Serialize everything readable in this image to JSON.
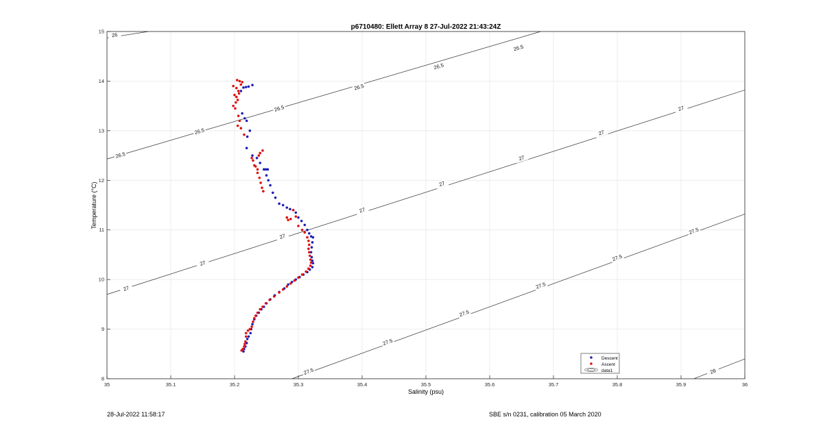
{
  "chart_data": {
    "type": "scatter",
    "title": "p6710480: Ellett Array 8 27-Jul-2022 21:43:24Z",
    "xlabel": "Salinity (psu)",
    "ylabel": "Temperature (°C)",
    "xlim": [
      35,
      36
    ],
    "ylim": [
      8,
      15
    ],
    "xticks": [
      "35",
      "35.1",
      "35.2",
      "35.3",
      "35.4",
      "35.5",
      "35.6",
      "35.7",
      "35.8",
      "35.9",
      "36"
    ],
    "yticks": [
      "8",
      "9",
      "10",
      "11",
      "12",
      "13",
      "14",
      "15"
    ],
    "grid": true,
    "legend": {
      "position": "bottom-right",
      "entries": [
        "Descent",
        "Ascent",
        "data1"
      ]
    },
    "series": [
      {
        "name": "Descent",
        "color": "#1f1fb4",
        "points": [
          [
            35.228,
            13.92
          ],
          [
            35.222,
            13.89
          ],
          [
            35.218,
            13.88
          ],
          [
            35.214,
            13.87
          ],
          [
            35.21,
            13.8
          ],
          [
            35.212,
            13.35
          ],
          [
            35.216,
            13.25
          ],
          [
            35.219,
            13.2
          ],
          [
            35.224,
            13.0
          ],
          [
            35.22,
            12.88
          ],
          [
            35.219,
            12.65
          ],
          [
            35.228,
            12.5
          ],
          [
            35.235,
            12.45
          ],
          [
            35.24,
            12.35
          ],
          [
            35.246,
            12.22
          ],
          [
            35.249,
            12.22
          ],
          [
            35.252,
            12.22
          ],
          [
            35.25,
            12.1
          ],
          [
            35.253,
            12.0
          ],
          [
            35.256,
            11.9
          ],
          [
            35.26,
            11.75
          ],
          [
            35.264,
            11.65
          ],
          [
            35.27,
            11.53
          ],
          [
            35.276,
            11.5
          ],
          [
            35.282,
            11.45
          ],
          [
            35.287,
            11.42
          ],
          [
            35.292,
            11.4
          ],
          [
            35.296,
            11.35
          ],
          [
            35.3,
            11.25
          ],
          [
            35.305,
            11.18
          ],
          [
            35.31,
            11.1
          ],
          [
            35.314,
            11.0
          ],
          [
            35.317,
            10.93
          ],
          [
            35.32,
            10.87
          ],
          [
            35.323,
            10.85
          ],
          [
            35.322,
            10.75
          ],
          [
            35.321,
            10.65
          ],
          [
            35.32,
            10.55
          ],
          [
            35.321,
            10.45
          ],
          [
            35.322,
            10.38
          ],
          [
            35.323,
            10.33
          ],
          [
            35.322,
            10.25
          ],
          [
            35.318,
            10.2
          ],
          [
            35.314,
            10.15
          ],
          [
            35.308,
            10.1
          ],
          [
            35.302,
            10.05
          ],
          [
            35.296,
            10.0
          ],
          [
            35.29,
            9.95
          ],
          [
            35.284,
            9.9
          ],
          [
            35.278,
            9.82
          ],
          [
            35.27,
            9.75
          ],
          [
            35.263,
            9.68
          ],
          [
            35.256,
            9.6
          ],
          [
            35.25,
            9.52
          ],
          [
            35.246,
            9.45
          ],
          [
            35.242,
            9.4
          ],
          [
            35.238,
            9.33
          ],
          [
            35.234,
            9.27
          ],
          [
            35.231,
            9.2
          ],
          [
            35.228,
            9.1
          ],
          [
            35.226,
            9.0
          ],
          [
            35.225,
            8.92
          ],
          [
            35.222,
            8.85
          ],
          [
            35.22,
            8.8
          ],
          [
            35.219,
            8.72
          ],
          [
            35.217,
            8.65
          ],
          [
            35.215,
            8.6
          ],
          [
            35.214,
            8.55
          ]
        ]
      },
      {
        "name": "Ascent",
        "color": "#e01010",
        "points": [
          [
            35.204,
            14.02
          ],
          [
            35.208,
            14.0
          ],
          [
            35.212,
            13.98
          ],
          [
            35.21,
            13.93
          ],
          [
            35.198,
            13.9
          ],
          [
            35.203,
            13.86
          ],
          [
            35.206,
            13.8
          ],
          [
            35.207,
            13.75
          ],
          [
            35.2,
            13.72
          ],
          [
            35.203,
            13.68
          ],
          [
            35.205,
            13.62
          ],
          [
            35.202,
            13.57
          ],
          [
            35.198,
            13.5
          ],
          [
            35.201,
            13.45
          ],
          [
            35.206,
            13.3
          ],
          [
            35.208,
            13.2
          ],
          [
            35.205,
            13.1
          ],
          [
            35.21,
            13.05
          ],
          [
            35.215,
            12.92
          ],
          [
            35.227,
            12.45
          ],
          [
            35.229,
            12.4
          ],
          [
            35.231,
            12.3
          ],
          [
            35.233,
            12.28
          ],
          [
            35.244,
            12.6
          ],
          [
            35.24,
            12.55
          ],
          [
            35.238,
            12.5
          ],
          [
            35.236,
            12.22
          ],
          [
            35.236,
            12.15
          ],
          [
            35.239,
            12.05
          ],
          [
            35.241,
            11.95
          ],
          [
            35.243,
            11.85
          ],
          [
            35.245,
            11.78
          ],
          [
            35.282,
            11.25
          ],
          [
            35.284,
            11.2
          ],
          [
            35.288,
            11.22
          ],
          [
            35.292,
            11.4
          ],
          [
            35.296,
            11.27
          ],
          [
            35.3,
            11.08
          ],
          [
            35.306,
            11.0
          ],
          [
            35.31,
            10.95
          ],
          [
            35.314,
            10.85
          ],
          [
            35.316,
            10.78
          ],
          [
            35.317,
            10.7
          ],
          [
            35.316,
            10.62
          ],
          [
            35.317,
            10.55
          ],
          [
            35.318,
            10.48
          ],
          [
            35.319,
            10.4
          ],
          [
            35.32,
            10.34
          ],
          [
            35.319,
            10.28
          ],
          [
            35.316,
            10.22
          ],
          [
            35.312,
            10.16
          ],
          [
            35.306,
            10.1
          ],
          [
            35.3,
            10.04
          ],
          [
            35.294,
            9.98
          ],
          [
            35.288,
            9.92
          ],
          [
            35.282,
            9.86
          ],
          [
            35.276,
            9.8
          ],
          [
            35.27,
            9.74
          ],
          [
            35.262,
            9.66
          ],
          [
            35.255,
            9.59
          ],
          [
            35.249,
            9.52
          ],
          [
            35.244,
            9.45
          ],
          [
            35.24,
            9.4
          ],
          [
            35.236,
            9.33
          ],
          [
            35.233,
            9.27
          ],
          [
            35.231,
            9.22
          ],
          [
            35.229,
            9.15
          ],
          [
            35.227,
            9.05
          ],
          [
            35.224,
            9.0
          ],
          [
            35.221,
            8.97
          ],
          [
            35.218,
            8.92
          ],
          [
            35.218,
            8.85
          ],
          [
            35.217,
            8.75
          ],
          [
            35.216,
            8.7
          ],
          [
            35.215,
            8.65
          ],
          [
            35.213,
            8.6
          ],
          [
            35.211,
            8.57
          ]
        ]
      }
    ],
    "contours": {
      "name": "data1",
      "levels": [
        {
          "label": "26",
          "points": [
            [
              35.0,
              14.87
            ],
            [
              35.065,
              15.0
            ]
          ],
          "label_at": [
            [
              35.012,
              14.93
            ]
          ]
        },
        {
          "label": "26.5",
          "points": [
            [
              35.0,
              12.43
            ],
            [
              35.68,
              15.0
            ]
          ],
          "label_at": [
            [
              35.021,
              12.51
            ],
            [
              35.145,
              12.99
            ],
            [
              35.27,
              13.45
            ],
            [
              35.395,
              13.88
            ],
            [
              35.52,
              14.3
            ],
            [
              35.645,
              14.67
            ]
          ]
        },
        {
          "label": "27",
          "points": [
            [
              35.0,
              9.7
            ],
            [
              36.0,
              13.82
            ]
          ],
          "label_at": [
            [
              35.03,
              9.82
            ],
            [
              35.15,
              10.33
            ],
            [
              35.275,
              10.87
            ],
            [
              35.4,
              11.4
            ],
            [
              35.525,
              11.93
            ],
            [
              35.65,
              12.45
            ],
            [
              35.775,
              12.96
            ],
            [
              35.9,
              13.45
            ]
          ]
        },
        {
          "label": "27.5",
          "points": [
            [
              35.29,
              8.0
            ],
            [
              36.0,
              11.32
            ]
          ],
          "label_at": [
            [
              35.316,
              8.15
            ],
            [
              35.44,
              8.74
            ],
            [
              35.56,
              9.32
            ],
            [
              35.68,
              9.88
            ],
            [
              35.8,
              10.44
            ],
            [
              35.92,
              10.98
            ]
          ]
        },
        {
          "label": "28",
          "points": [
            [
              35.92,
              8.0
            ],
            [
              36.0,
              8.4
            ]
          ],
          "label_at": [
            [
              35.95,
              8.15
            ]
          ]
        }
      ]
    }
  },
  "footer": {
    "left": "28-Jul-2022 11:58:17",
    "right": "SBE s/n 0231, calibration 05 March 2020"
  }
}
